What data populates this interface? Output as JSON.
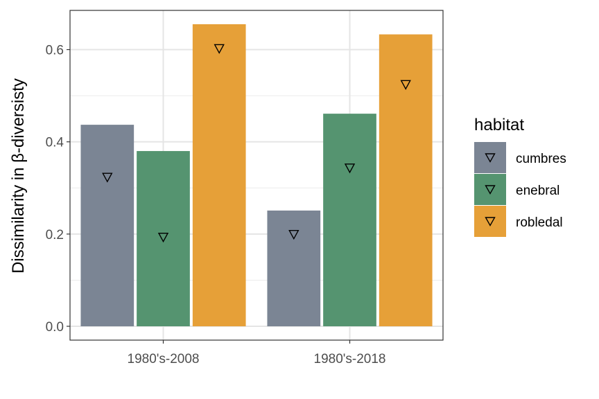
{
  "chart_data": {
    "type": "bar",
    "categories": [
      "1980's-2008",
      "1980's-2018"
    ],
    "series": [
      {
        "name": "cumbres",
        "color": "#7b8594",
        "values": [
          0.437,
          0.251
        ],
        "markers": [
          0.322,
          0.198
        ]
      },
      {
        "name": "enebral",
        "color": "#559470",
        "values": [
          0.38,
          0.461
        ],
        "markers": [
          0.192,
          0.342
        ]
      },
      {
        "name": "robledal",
        "color": "#e6a038",
        "values": [
          0.655,
          0.633
        ],
        "markers": [
          0.601,
          0.523
        ]
      }
    ],
    "ylabel_prefix": "Dissimilarity in ",
    "ylabel_symbol": "β",
    "ylabel_suffix": "-diversisty",
    "ylim": [
      -0.03,
      0.685
    ],
    "yticks": [
      0.0,
      0.2,
      0.4,
      0.6
    ],
    "ytick_labels": [
      "0.0",
      "0.2",
      "0.4",
      "0.6"
    ],
    "legend_title": "habitat",
    "legend_position": "right",
    "marker": "inverted-triangle",
    "grid": true
  }
}
